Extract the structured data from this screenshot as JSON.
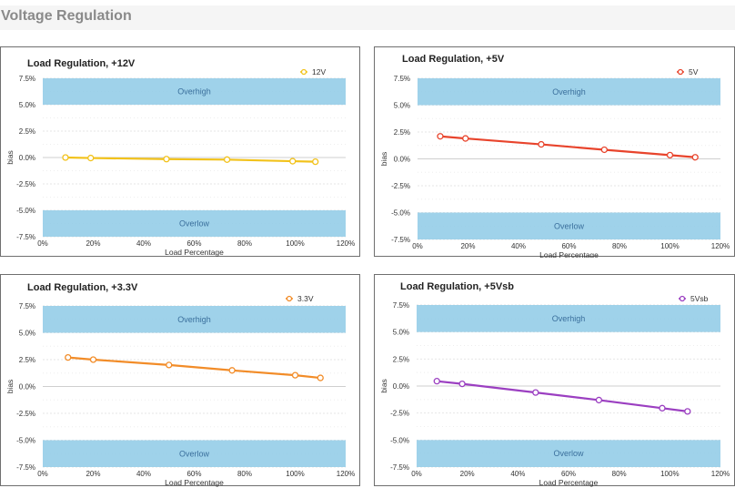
{
  "page": {
    "title": "Voltage Regulation"
  },
  "chart_data": [
    {
      "type": "line",
      "title": "Load Regulation, +12V",
      "xlabel": "Load Percentage",
      "ylabel": "bias",
      "xlim": [
        0,
        120
      ],
      "ylim": [
        -7.5,
        7.5
      ],
      "x_ticks": [
        "0%",
        "20%",
        "40%",
        "60%",
        "80%",
        "100%",
        "120%"
      ],
      "y_ticks": [
        "7.5%",
        "5.0%",
        "2.5%",
        "0.0%",
        "-2.5%",
        "-5.0%",
        "-7.5%"
      ],
      "bands": [
        {
          "label": "Overhigh",
          "from": 5.0,
          "to": 7.5
        },
        {
          "label": "Overlow",
          "from": -7.5,
          "to": -5.0
        }
      ],
      "legend_position": "top-right",
      "color": "#f2c21b",
      "series": [
        {
          "name": "12V",
          "x": [
            9,
            19,
            49,
            73,
            99,
            108
          ],
          "y": [
            0.0,
            -0.05,
            -0.15,
            -0.2,
            -0.35,
            -0.4
          ]
        }
      ]
    },
    {
      "type": "line",
      "title": "Load Regulation, +5V",
      "xlabel": "Load Percentage",
      "ylabel": "bias",
      "xlim": [
        0,
        120
      ],
      "ylim": [
        -7.5,
        7.5
      ],
      "x_ticks": [
        "0%",
        "20%",
        "40%",
        "60%",
        "80%",
        "100%",
        "120%"
      ],
      "y_ticks": [
        "7.5%",
        "5.0%",
        "2.5%",
        "0.0%",
        "-2.5%",
        "-5.0%",
        "-7.5%"
      ],
      "bands": [
        {
          "label": "Overhigh",
          "from": 5.0,
          "to": 7.5
        },
        {
          "label": "Overlow",
          "from": -7.5,
          "to": -5.0
        }
      ],
      "legend_position": "top-right",
      "color": "#e8442c",
      "series": [
        {
          "name": "5V",
          "x": [
            9,
            19,
            49,
            74,
            100,
            110
          ],
          "y": [
            2.1,
            1.9,
            1.35,
            0.85,
            0.35,
            0.15
          ]
        }
      ]
    },
    {
      "type": "line",
      "title": "Load Regulation, +3.3V",
      "xlabel": "Load Percentage",
      "ylabel": "bias",
      "xlim": [
        0,
        120
      ],
      "ylim": [
        -7.5,
        7.5
      ],
      "x_ticks": [
        "0%",
        "20%",
        "40%",
        "60%",
        "80%",
        "100%",
        "120%"
      ],
      "y_ticks": [
        "7.5%",
        "5.0%",
        "2.5%",
        "0.0%",
        "-2.5%",
        "-5.0%",
        "-7.5%"
      ],
      "bands": [
        {
          "label": "Overhigh",
          "from": 5.0,
          "to": 7.5
        },
        {
          "label": "Overlow",
          "from": -7.5,
          "to": -5.0
        }
      ],
      "legend_position": "top-right",
      "color": "#f28c28",
      "series": [
        {
          "name": "3.3V",
          "x": [
            10,
            20,
            50,
            75,
            100,
            110
          ],
          "y": [
            2.7,
            2.5,
            2.0,
            1.5,
            1.05,
            0.8
          ]
        }
      ]
    },
    {
      "type": "line",
      "title": "Load Regulation, +5Vsb",
      "xlabel": "Load Percentage",
      "ylabel": "bias",
      "xlim": [
        0,
        120
      ],
      "ylim": [
        -7.5,
        7.5
      ],
      "x_ticks": [
        "0%",
        "20%",
        "40%",
        "60%",
        "80%",
        "100%",
        "120%"
      ],
      "y_ticks": [
        "7.5%",
        "5.0%",
        "2.5%",
        "0.0%",
        "-2.5%",
        "-5.0%",
        "-7.5%"
      ],
      "bands": [
        {
          "label": "Overhigh",
          "from": 5.0,
          "to": 7.5
        },
        {
          "label": "Overlow",
          "from": -7.5,
          "to": -5.0
        }
      ],
      "legend_position": "top-right",
      "color": "#9b3fc1",
      "series": [
        {
          "name": "5Vsb",
          "x": [
            8,
            18,
            47,
            72,
            97,
            107
          ],
          "y": [
            0.45,
            0.2,
            -0.6,
            -1.3,
            -2.05,
            -2.35
          ]
        }
      ]
    }
  ]
}
